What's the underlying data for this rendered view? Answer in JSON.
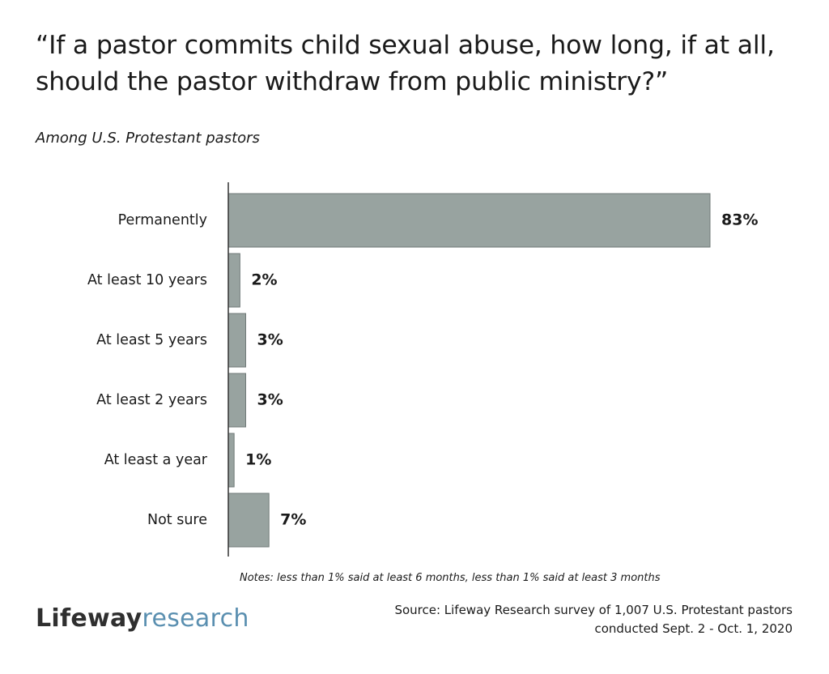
{
  "header": {
    "title": "“If a pastor commits child sexual abuse, how long, if at all, should the pastor withdraw from public ministry?”",
    "subtitle": "Among U.S. Protestant pastors"
  },
  "chart_data": {
    "type": "bar",
    "orientation": "horizontal",
    "title": "“If a pastor commits child sexual abuse, how long, if at all, should the pastor withdraw from public ministry?”",
    "subtitle": "Among U.S. Protestant pastors",
    "categories": [
      "Permanently",
      "At least 10 years",
      "At least 5 years",
      "At least 2 years",
      "At least a year",
      "Not sure"
    ],
    "values": [
      83,
      2,
      3,
      3,
      1,
      7
    ],
    "value_labels": [
      "83%",
      "2%",
      "3%",
      "3%",
      "1%",
      "7%"
    ],
    "unit": "%",
    "xlim": [
      0,
      83
    ],
    "bar_color": "#98a3a0",
    "grid": false,
    "legend": "none"
  },
  "footer": {
    "notes": "Notes: less than 1% said at least 6 months, less than 1% said at least 3 months",
    "logo_part1": "Lifeway",
    "logo_part2": "research",
    "source_line1": "Source: Lifeway Research survey of 1,007 U.S. Protestant pastors",
    "source_line2": "conducted Sept. 2 - Oct. 1, 2020"
  },
  "colors": {
    "bar": "#98a3a0",
    "bar_edge": "#6f7977",
    "axis": "#333333",
    "text": "#1a1a1a",
    "logo_dark": "#2f2f2f",
    "logo_blue": "#5a8fb0"
  }
}
